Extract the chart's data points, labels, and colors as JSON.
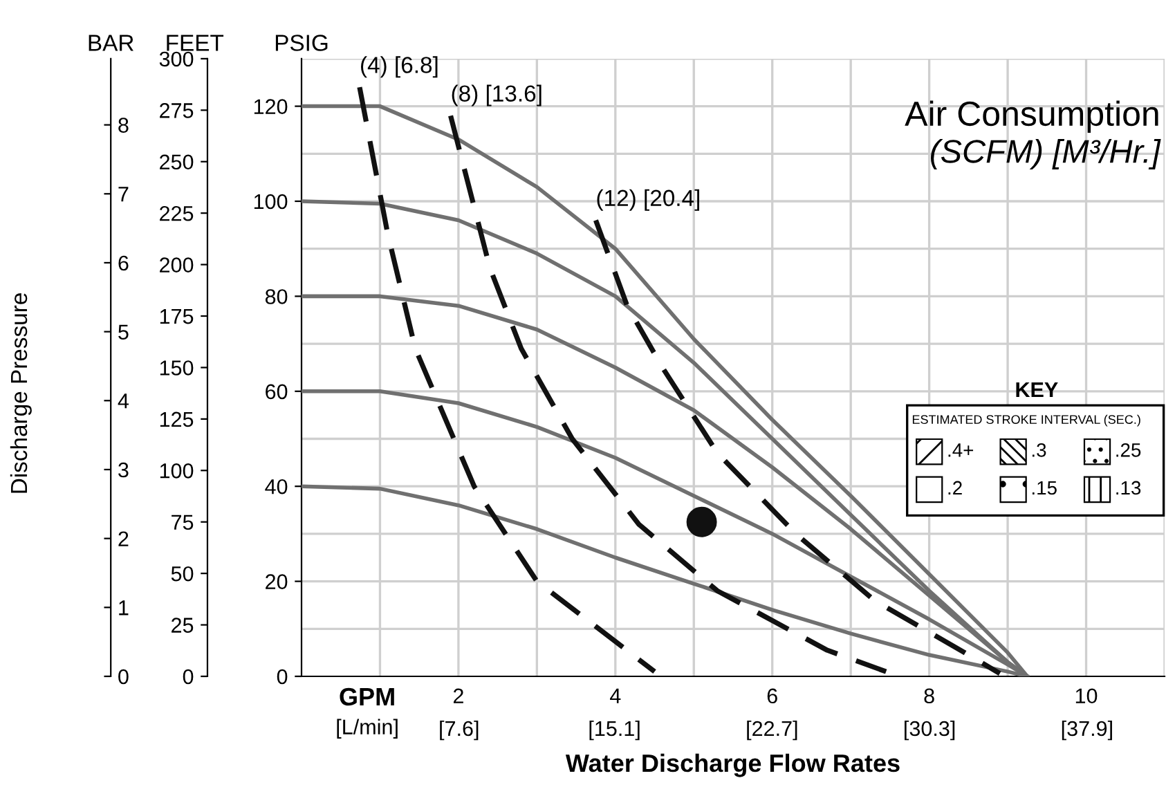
{
  "chart_data": {
    "type": "line",
    "title": "Air Consumption",
    "subtitle": "(SCFM) [M³/Hr.]",
    "xlabel": "Water Discharge Flow Rates",
    "ylabel": "PSIG",
    "y2label": "FEET",
    "y3label": "BAR",
    "annotations": [
      "Discharge Pressure",
      "GPM",
      "[L/min]",
      "KEY",
      "ESTIMATED STROKE INTERVAL (SEC.)",
      ".4+",
      ".3",
      ".25",
      ".2",
      ".15",
      ".13"
    ],
    "xlim": [
      0,
      11
    ],
    "xticks": [
      2,
      4,
      6,
      8,
      10
    ],
    "x2lim": [
      0,
      41.64
    ],
    "x2ticks": [
      {
        "value": 7.6,
        "label": "[7.6]"
      },
      {
        "value": 15.1,
        "label": "[15.1]"
      },
      {
        "value": 22.7,
        "label": "[22.7]"
      },
      {
        "value": 30.3,
        "label": "[30.3]"
      },
      {
        "value": 37.9,
        "label": "[37.9]"
      }
    ],
    "ylim": [
      0,
      130
    ],
    "yticks": [
      0,
      20,
      40,
      60,
      80,
      100,
      120
    ],
    "y2lim": [
      0,
      300
    ],
    "y2ticks": [
      0,
      25,
      50,
      75,
      100,
      125,
      150,
      175,
      200,
      225,
      250,
      275,
      300
    ],
    "y3lim": [
      0,
      8.96
    ],
    "y3ticks": [
      0,
      1,
      2,
      3,
      4,
      5,
      6,
      7,
      8
    ],
    "grid": true,
    "series": [
      {
        "color": "#707070",
        "x": [
          0,
          1,
          2,
          3,
          4,
          5,
          6,
          7,
          8,
          9,
          9.25
        ],
        "values": [
          120,
          120,
          113,
          103,
          90,
          71,
          54,
          38,
          21.5,
          5,
          0
        ]
      },
      {
        "color": "#707070",
        "x": [
          0,
          1,
          2,
          3,
          4,
          5,
          6,
          7,
          8,
          9,
          9.25
        ],
        "values": [
          100,
          99.5,
          96,
          89,
          80,
          66,
          50,
          34,
          18,
          3,
          0
        ]
      },
      {
        "color": "#707070",
        "x": [
          0,
          1,
          2,
          3,
          4,
          5,
          6,
          7,
          8,
          9,
          9.25
        ],
        "values": [
          80,
          80,
          78,
          73,
          65,
          56,
          44,
          31,
          17,
          3,
          0
        ]
      },
      {
        "color": "#707070",
        "x": [
          0,
          1,
          2,
          3,
          4,
          5,
          6,
          7,
          8,
          9,
          9.25
        ],
        "values": [
          60,
          60,
          57.5,
          52.5,
          46,
          38,
          30,
          21,
          12,
          2.5,
          0
        ]
      },
      {
        "color": "#707070",
        "x": [
          0,
          1,
          2,
          3,
          4,
          5,
          6,
          7,
          8,
          9,
          9.25
        ],
        "values": [
          40,
          39.5,
          36,
          31,
          25,
          19.5,
          14,
          9,
          4.5,
          1,
          0
        ]
      },
      {
        "name": "(4) [6.8]",
        "color": "#111111",
        "line_style": "dashed",
        "x": [
          0.74,
          1.1,
          1.45,
          2.2,
          3.0,
          4.5
        ],
        "values": [
          124,
          93,
          69,
          40,
          20,
          1
        ]
      },
      {
        "name": "(8) [13.6]",
        "color": "#111111",
        "line_style": "dashed",
        "x": [
          1.9,
          2.4,
          2.8,
          3.45,
          4.3,
          5.3,
          6.7,
          7.45
        ],
        "values": [
          118,
          86,
          69,
          50,
          32,
          18,
          5.5,
          1
        ]
      },
      {
        "name": "(12) [20.4]",
        "color": "#111111",
        "line_style": "dashed",
        "x": [
          3.75,
          4.15,
          4.6,
          5.3,
          6.3,
          7.3,
          8.45,
          8.9
        ],
        "values": [
          96,
          78,
          65,
          47,
          30,
          16,
          5,
          0.6
        ]
      },
      {
        "type": "scatter",
        "marker": "circle",
        "color": "#111111",
        "x": [
          5.1
        ],
        "values": [
          32.5
        ]
      }
    ]
  }
}
